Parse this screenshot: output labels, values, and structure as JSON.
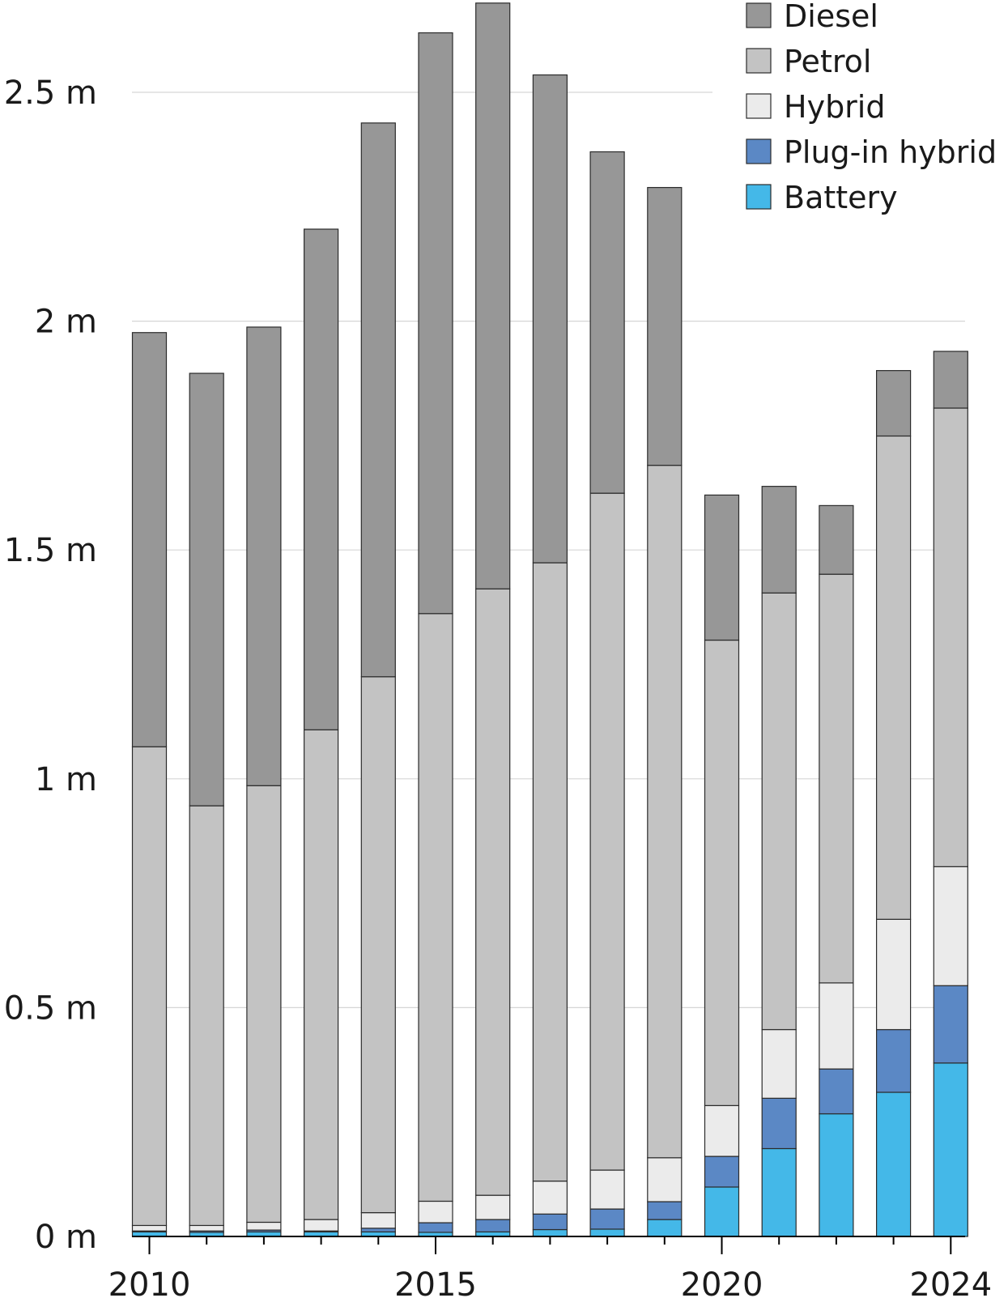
{
  "chart_data": {
    "type": "bar",
    "stacked": true,
    "categories": [
      "2010",
      "2011",
      "2012",
      "2013",
      "2014",
      "2015",
      "2016",
      "2017",
      "2018",
      "2019",
      "2020",
      "2021",
      "2022",
      "2023",
      "2024"
    ],
    "x_tick_labels": [
      "2010",
      "2015",
      "2020",
      "2024"
    ],
    "y_ticks": [
      {
        "value": 0,
        "label": "0 m"
      },
      {
        "value": 0.5,
        "label": "0.5 m"
      },
      {
        "value": 1.0,
        "label": "1 m"
      },
      {
        "value": 1.5,
        "label": "1.5 m"
      },
      {
        "value": 2.0,
        "label": "2 m"
      },
      {
        "value": 2.5,
        "label": "2.5 m"
      }
    ],
    "ylim": [
      0,
      2.7
    ],
    "grid": true,
    "legend_position": "top-right",
    "series": [
      {
        "name": "Battery",
        "color": "#44b8e8",
        "values": [
          0.01,
          0.009,
          0.01,
          0.01,
          0.01,
          0.009,
          0.01,
          0.015,
          0.016,
          0.037,
          0.108,
          0.192,
          0.268,
          0.315,
          0.379
        ]
      },
      {
        "name": "Plug-in hybrid",
        "color": "#5b88c5",
        "values": [
          0.002,
          0.003,
          0.004,
          0.002,
          0.008,
          0.021,
          0.027,
          0.034,
          0.044,
          0.039,
          0.067,
          0.11,
          0.098,
          0.137,
          0.169
        ]
      },
      {
        "name": "Hybrid",
        "color": "#ebebeb",
        "values": [
          0.012,
          0.012,
          0.017,
          0.025,
          0.034,
          0.047,
          0.053,
          0.072,
          0.085,
          0.096,
          0.111,
          0.15,
          0.188,
          0.241,
          0.26
        ]
      },
      {
        "name": "Petrol",
        "color": "#c3c3c3",
        "values": [
          1.046,
          0.917,
          0.954,
          1.07,
          1.171,
          1.284,
          1.325,
          1.351,
          1.479,
          1.513,
          1.017,
          0.954,
          0.893,
          1.056,
          1.002
        ]
      },
      {
        "name": "Diesel",
        "color": "#979797",
        "values": [
          0.905,
          0.945,
          1.002,
          1.094,
          1.21,
          1.269,
          1.28,
          1.066,
          0.746,
          0.607,
          0.317,
          0.233,
          0.15,
          0.143,
          0.124
        ]
      }
    ],
    "legend_order": [
      "Diesel",
      "Petrol",
      "Hybrid",
      "Plug-in hybrid",
      "Battery"
    ]
  }
}
